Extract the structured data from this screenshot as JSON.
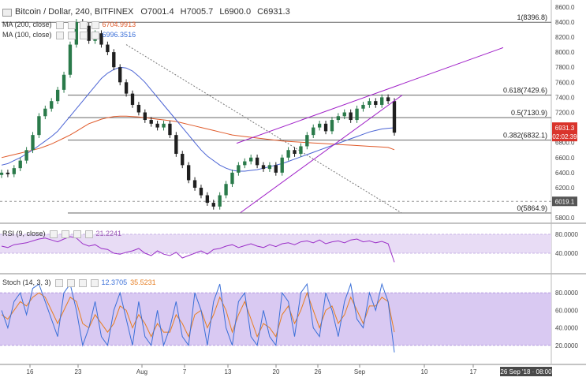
{
  "legend": {
    "title": "Bitcoin / Dollar, 240, BITFINEX",
    "ohlc": [
      "O7001.4",
      "H7005.7",
      "L6900.0",
      "C6931.3"
    ],
    "ma200_label": "MA (200, close)",
    "ma200_value": "6704.9913",
    "ma100_label": "MA (100, close)",
    "ma100_value": "6996.3516"
  },
  "rsi": {
    "label": "RSI (9, close)",
    "value": "21.2241",
    "ticks": [
      "80.0000",
      "40.0000"
    ]
  },
  "stoch": {
    "label": "Stoch (14, 3, 3)",
    "k_value": "12.3705",
    "d_value": "35.5231",
    "ticks": [
      "80.0000",
      "60.0000",
      "40.0000",
      "20.0000"
    ]
  },
  "price_axis": {
    "ticks": [
      "8600.0",
      "8400.0",
      "8200.0",
      "8000.0",
      "7800.0",
      "7600.0",
      "7400.0",
      "7200.0",
      "7000.0",
      "6800.0",
      "6600.0",
      "6400.0",
      "6200.0",
      "6000.0",
      "5800.0"
    ],
    "current_price": "6931.3",
    "countdown": "02:02:39",
    "marker_price": "6019.1"
  },
  "fib_levels": [
    {
      "label": "1(8396.8)",
      "price": 8396.8
    },
    {
      "label": "0.618(7429.6)",
      "price": 7429.6
    },
    {
      "label": "0.5(7130.9)",
      "price": 7130.9
    },
    {
      "label": "0.382(6832.1)",
      "price": 6832.1
    },
    {
      "label": "0(5864.9)",
      "price": 5864.9
    }
  ],
  "time_axis": {
    "ticks": [
      "16",
      "23",
      "Aug",
      "7",
      "13",
      "20",
      "26",
      "Sep",
      "10",
      "17"
    ],
    "cursor_label": "26 Sep '18 · 08:00"
  },
  "colors": {
    "candle_up": "#2a7a4a",
    "candle_down": "#1f1f1f",
    "ma200": "#e05a2a",
    "ma100": "#4a63d4",
    "channel": "#a020c8",
    "rsi_band": "#e8dcf5",
    "stoch_band": "#d9c9f2",
    "price_tag": "#d9342b"
  },
  "chart_data": {
    "type": "candlestick",
    "title": "Bitcoin / Dollar, 240, BITFINEX",
    "ylim": [
      5760,
      8640
    ],
    "x": [
      "16",
      "23",
      "Aug",
      "7",
      "13",
      "20",
      "26",
      "Sep",
      "10",
      "17"
    ],
    "close_path": [
      6400,
      6380,
      6460,
      6560,
      6700,
      6900,
      7150,
      7250,
      7350,
      7500,
      7700,
      8100,
      8400,
      8350,
      8150,
      8250,
      8100,
      8000,
      7800,
      7600,
      7450,
      7300,
      7200,
      7100,
      7050,
      7000,
      7050,
      6900,
      6650,
      6500,
      6300,
      6200,
      6100,
      6000,
      5950,
      6100,
      6250,
      6400,
      6500,
      6550,
      6600,
      6500,
      6450,
      6500,
      6400,
      6600,
      6700,
      6650,
      6750,
      6900,
      7000,
      7050,
      6950,
      7100,
      7150,
      7200,
      7100,
      7250,
      7300,
      7350,
      7300,
      7400,
      7350,
      6931
    ],
    "ma200": [
      6600,
      6620,
      6640,
      6660,
      6680,
      6700,
      6720,
      6750,
      6780,
      6820,
      6860,
      6900,
      6950,
      7000,
      7050,
      7080,
      7110,
      7130,
      7145,
      7150,
      7150,
      7145,
      7140,
      7130,
      7120,
      7110,
      7100,
      7090,
      7080,
      7060,
      7040,
      7020,
      7000,
      6980,
      6960,
      6940,
      6920,
      6900,
      6890,
      6880,
      6870,
      6860,
      6850,
      6840,
      6830,
      6820,
      6815,
      6810,
      6805,
      6800,
      6795,
      6790,
      6785,
      6780,
      6775,
      6770,
      6765,
      6760,
      6755,
      6750,
      6745,
      6740,
      6735,
      6705
    ],
    "ma100": [
      6500,
      6520,
      6560,
      6600,
      6650,
      6700,
      6760,
      6820,
      6880,
      6950,
      7050,
      7150,
      7250,
      7350,
      7450,
      7550,
      7650,
      7720,
      7770,
      7800,
      7790,
      7750,
      7680,
      7600,
      7500,
      7400,
      7300,
      7200,
      7100,
      7000,
      6900,
      6800,
      6700,
      6620,
      6560,
      6500,
      6460,
      6430,
      6420,
      6420,
      6430,
      6440,
      6460,
      6480,
      6500,
      6520,
      6550,
      6580,
      6610,
      6640,
      6670,
      6700,
      6730,
      6760,
      6790,
      6820,
      6850,
      6880,
      6910,
      6940,
      6960,
      6980,
      6990,
      6996
    ],
    "rsi": [
      55,
      52,
      58,
      60,
      62,
      66,
      70,
      72,
      68,
      64,
      70,
      75,
      72,
      60,
      55,
      58,
      50,
      48,
      40,
      38,
      42,
      45,
      50,
      40,
      35,
      45,
      38,
      35,
      42,
      30,
      35,
      40,
      45,
      38,
      48,
      50,
      55,
      58,
      52,
      56,
      60,
      55,
      52,
      58,
      54,
      60,
      62,
      58,
      64,
      66,
      62,
      68,
      60,
      64,
      66,
      62,
      68,
      70,
      64,
      66,
      62,
      65,
      60,
      21
    ],
    "stoch_k": [
      60,
      40,
      70,
      80,
      55,
      85,
      90,
      70,
      50,
      30,
      80,
      90,
      60,
      20,
      40,
      70,
      30,
      20,
      60,
      80,
      50,
      20,
      70,
      30,
      20,
      60,
      20,
      40,
      70,
      30,
      20,
      80,
      60,
      20,
      70,
      90,
      40,
      20,
      70,
      80,
      30,
      20,
      60,
      30,
      20,
      80,
      70,
      30,
      80,
      90,
      40,
      30,
      80,
      60,
      30,
      70,
      90,
      50,
      40,
      80,
      60,
      90,
      70,
      12
    ],
    "stoch_d": [
      55,
      50,
      60,
      70,
      65,
      75,
      80,
      75,
      60,
      45,
      60,
      75,
      70,
      45,
      40,
      55,
      45,
      35,
      45,
      65,
      60,
      40,
      55,
      45,
      30,
      45,
      35,
      35,
      55,
      45,
      30,
      55,
      60,
      40,
      55,
      75,
      60,
      35,
      55,
      70,
      50,
      30,
      45,
      40,
      30,
      55,
      65,
      45,
      60,
      80,
      60,
      40,
      60,
      65,
      45,
      55,
      75,
      60,
      45,
      65,
      65,
      75,
      70,
      35
    ],
    "fib_retracement": [
      8396.8,
      7429.6,
      7130.9,
      6832.1,
      5864.9
    ],
    "rising_wedge": {
      "upper": [
        [
          6790,
          "13"
        ],
        [
          8060,
          "17"
        ]
      ],
      "lower": [
        [
          5860,
          "13"
        ],
        [
          7430,
          "Sep+"
        ]
      ]
    }
  }
}
